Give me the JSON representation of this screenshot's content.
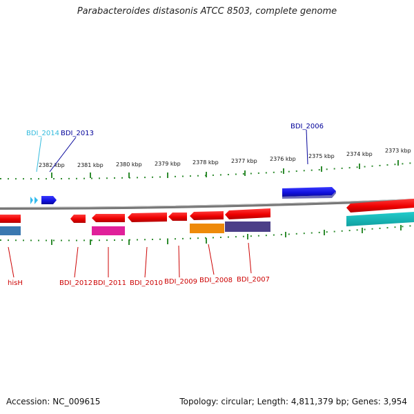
{
  "title": "Parabacteroides distasonis ATCC 8503, complete genome",
  "footer": {
    "accession": "Accession: NC_009615",
    "summary": "Topology: circular; Length: 4,811,379 bp; Genes: 3,954"
  },
  "colors": {
    "backbone": "#7a7a7a",
    "scale": "#2e8b2e",
    "gene_top": "#1515dd",
    "gene_bottom": "#ff0000",
    "label_red": "#cc0000",
    "label_blue": "#000099",
    "label_cyan": "#33bbdd"
  },
  "scale_labels": [
    "2382 kbp",
    "2381 kbp",
    "2380 kbp",
    "2379 kbp",
    "2378 kbp",
    "2377 kbp",
    "2376 kbp",
    "2375 kbp",
    "2374 kbp",
    "2373 kbp"
  ],
  "top_genes": [
    {
      "label": "BDI_2014",
      "color": "#33bbdd"
    },
    {
      "label": "BDI_2013",
      "color": "#000099"
    },
    {
      "label": "BDI_2006",
      "color": "#000099"
    }
  ],
  "bottom_genes": [
    {
      "label": "hisH"
    },
    {
      "label": "BDI_2012"
    },
    {
      "label": "BDI_2011"
    },
    {
      "label": "BDI_2010"
    },
    {
      "label": "BDI_2009"
    },
    {
      "label": "BDI_2008"
    },
    {
      "label": "BDI_2007"
    }
  ]
}
